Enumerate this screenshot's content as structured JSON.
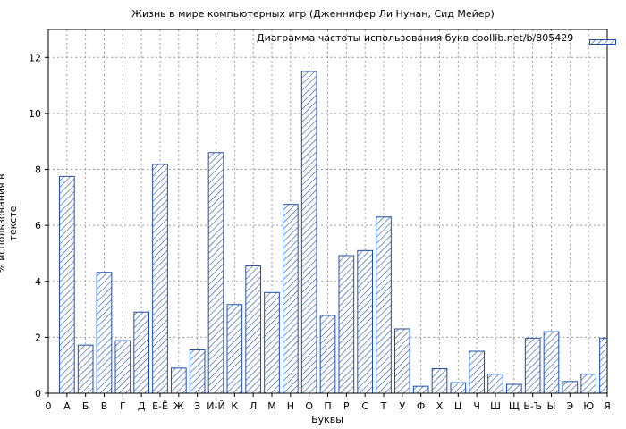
{
  "chart_data": {
    "type": "bar",
    "title": "Жизнь в мире компьютерных игр (Дженнифер Ли Нунан, Сид Мейер)",
    "xlabel": "Буквы",
    "ylabel": "% использования в тексте",
    "legend": "Диаграмма частоты использования букв coollib.net/b/805429",
    "legend_position": "top-right",
    "grid": true,
    "bar_color": "#1f4fa8",
    "hatch": "diagonal",
    "ylim": [
      0,
      13
    ],
    "yticks": [
      0,
      2,
      4,
      6,
      8,
      10,
      12
    ],
    "xticks": [
      "0",
      "А",
      "Б",
      "В",
      "Г",
      "Д",
      "Е-Ё",
      "Ж",
      "З",
      "И-Й",
      "К",
      "Л",
      "М",
      "Н",
      "О",
      "П",
      "Р",
      "С",
      "Т",
      "У",
      "Ф",
      "Х",
      "Ц",
      "Ч",
      "Ш",
      "Щ",
      "Ь-Ъ",
      "Ы",
      "Э",
      "Ю",
      "Я"
    ],
    "categories": [
      "А",
      "Б",
      "В",
      "Г",
      "Д",
      "Е-Ё",
      "Ж",
      "З",
      "И-Й",
      "К",
      "Л",
      "М",
      "Н",
      "О",
      "П",
      "Р",
      "С",
      "Т",
      "У",
      "Ф",
      "Х",
      "Ц",
      "Ч",
      "Ш",
      "Щ",
      "Ь-Ъ",
      "Ы",
      "Э",
      "Ю",
      "Я"
    ],
    "values": [
      7.75,
      1.72,
      4.32,
      1.88,
      2.9,
      8.18,
      0.9,
      1.55,
      8.6,
      3.17,
      4.55,
      3.6,
      6.75,
      11.5,
      2.78,
      4.92,
      5.1,
      6.3,
      2.3,
      0.25,
      0.88,
      0.38,
      1.5,
      0.68,
      0.32,
      1.97,
      2.2,
      0.42,
      0.68,
      1.97
    ]
  }
}
